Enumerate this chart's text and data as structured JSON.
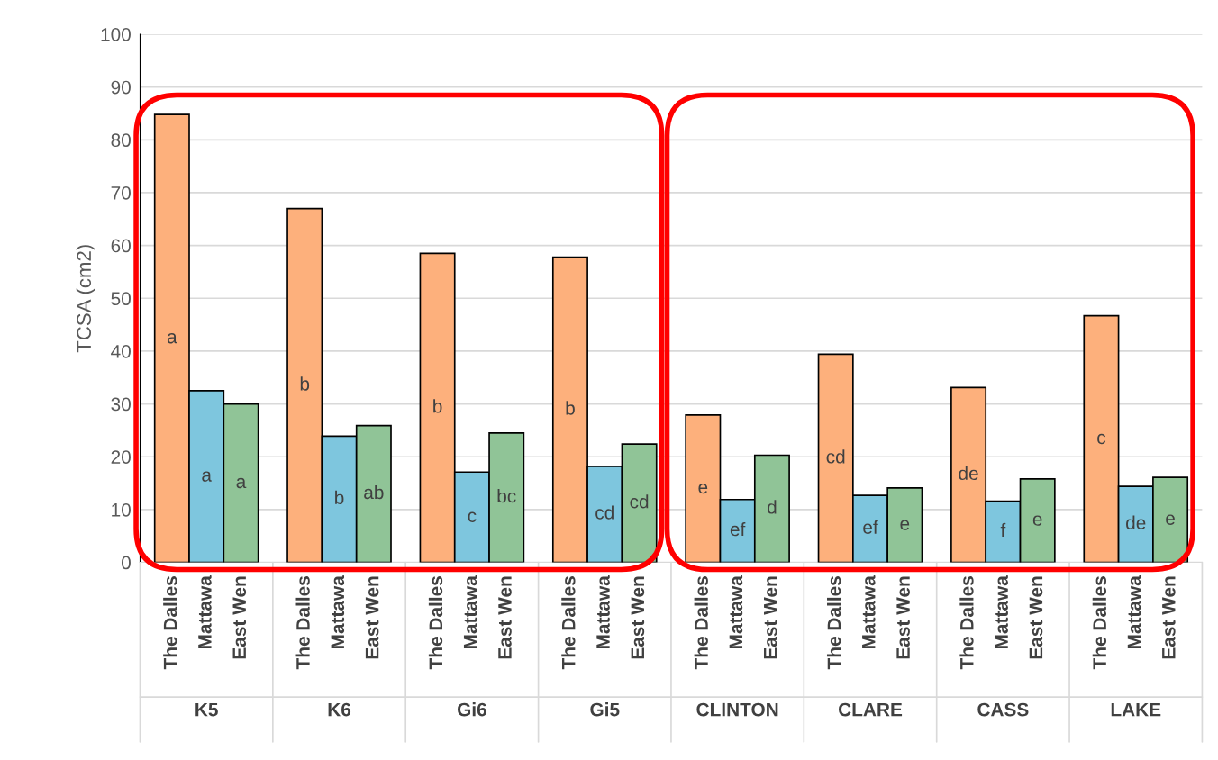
{
  "chart_data": {
    "type": "bar",
    "ylabel": "TCSA (cm2)",
    "categories": [
      "K5",
      "K6",
      "Gi6",
      "Gi5",
      "CLINTON",
      "CLARE",
      "CASS",
      "LAKE"
    ],
    "series": [
      {
        "name": "The Dalles",
        "color": "#fdb07c",
        "values": [
          84.8,
          67,
          58.5,
          57.8,
          27.9,
          39.4,
          33.1,
          46.7
        ],
        "value_labels": [
          "a",
          "b",
          "b",
          "b",
          "e",
          "cd",
          "de",
          "c"
        ]
      },
      {
        "name": "Mattawa",
        "color": "#7ec6de",
        "values": [
          32.5,
          23.9,
          17.1,
          18.2,
          11.9,
          12.7,
          11.6,
          14.4
        ],
        "value_labels": [
          "a",
          "b",
          "c",
          "cd",
          "ef",
          "ef",
          "f",
          "de"
        ]
      },
      {
        "name": "East Wen",
        "color": "#90c497",
        "values": [
          30,
          25.9,
          24.5,
          22.4,
          20.3,
          14.1,
          15.8,
          16.1
        ],
        "value_labels": [
          "a",
          "ab",
          "bc",
          "cd",
          "d",
          "e",
          "e",
          "e"
        ]
      }
    ],
    "ylim": [
      0,
      100
    ],
    "yticks": [
      0,
      10,
      20,
      30,
      40,
      50,
      60,
      70,
      80,
      90,
      100
    ],
    "grid": "y",
    "legend": false
  }
}
